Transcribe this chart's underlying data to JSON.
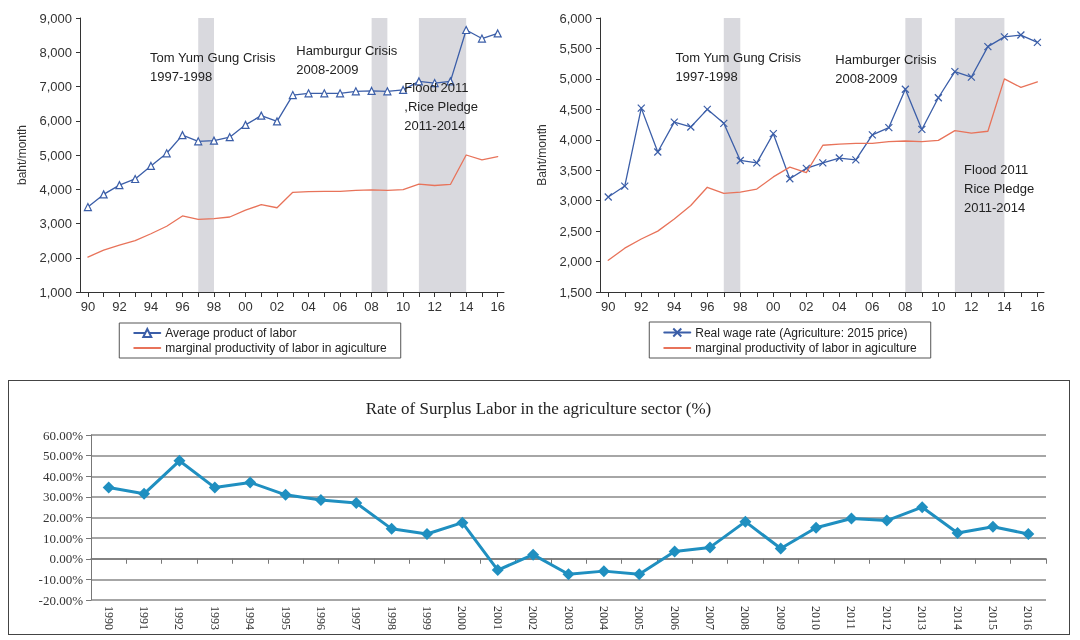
{
  "chart_data": [
    {
      "type": "line",
      "ylabel": "baht/month",
      "x": [
        1990,
        1991,
        1992,
        1993,
        1994,
        1995,
        1996,
        1997,
        1998,
        1999,
        2000,
        2001,
        2002,
        2003,
        2004,
        2005,
        2006,
        2007,
        2008,
        2009,
        2010,
        2011,
        2012,
        2013,
        2014,
        2015,
        2016
      ],
      "series": [
        {
          "name": "Average product of labor",
          "color": "#3b5ea8",
          "marker": "triangle",
          "values": [
            3480,
            3850,
            4120,
            4300,
            4680,
            5050,
            5580,
            5400,
            5420,
            5520,
            5880,
            6150,
            5980,
            6750,
            6800,
            6800,
            6800,
            6860,
            6870,
            6860,
            6900,
            7150,
            7100,
            7150,
            8650,
            8400,
            8550
          ]
        },
        {
          "name": "marginal productivity of labor in agiculture",
          "color": "#e8735a",
          "marker": "none",
          "values": [
            2020,
            2220,
            2370,
            2500,
            2700,
            2920,
            3220,
            3120,
            3140,
            3190,
            3390,
            3550,
            3460,
            3910,
            3930,
            3940,
            3940,
            3970,
            3980,
            3970,
            3990,
            4150,
            4110,
            4140,
            5000,
            4860,
            4950
          ]
        }
      ],
      "xlim": [
        1989.5,
        2016.4
      ],
      "xticks": [
        {
          "value": 1990,
          "label": "90"
        },
        {
          "value": 1991,
          "label": null
        },
        {
          "value": 1992,
          "label": "92"
        },
        {
          "value": 1993,
          "label": null
        },
        {
          "value": 1994,
          "label": "94"
        },
        {
          "value": 1995,
          "label": null
        },
        {
          "value": 1996,
          "label": "96"
        },
        {
          "value": 1997,
          "label": null
        },
        {
          "value": 1998,
          "label": "98"
        },
        {
          "value": 1999,
          "label": null
        },
        {
          "value": 2000,
          "label": "00"
        },
        {
          "value": 2001,
          "label": null
        },
        {
          "value": 2002,
          "label": "02"
        },
        {
          "value": 2003,
          "label": null
        },
        {
          "value": 2004,
          "label": "04"
        },
        {
          "value": 2005,
          "label": null
        },
        {
          "value": 2006,
          "label": "06"
        },
        {
          "value": 2007,
          "label": null
        },
        {
          "value": 2008,
          "label": "08"
        },
        {
          "value": 2009,
          "label": null
        },
        {
          "value": 2010,
          "label": "10"
        },
        {
          "value": 2011,
          "label": null
        },
        {
          "value": 2012,
          "label": "12"
        },
        {
          "value": 2013,
          "label": null
        },
        {
          "value": 2014,
          "label": "14"
        },
        {
          "value": 2015,
          "label": null
        },
        {
          "value": 2016,
          "label": "16"
        }
      ],
      "ylim": [
        1000,
        9000
      ],
      "yticks": [
        {
          "value": 1000,
          "label": "1,000"
        },
        {
          "value": 2000,
          "label": "2,000"
        },
        {
          "value": 3000,
          "label": "3,000"
        },
        {
          "value": 4000,
          "label": "4,000"
        },
        {
          "value": 5000,
          "label": "5,000"
        },
        {
          "value": 6000,
          "label": "6,000"
        },
        {
          "value": 7000,
          "label": "7,000"
        },
        {
          "value": 8000,
          "label": "8,000"
        },
        {
          "value": 9000,
          "label": "9,000"
        }
      ],
      "bands": [
        {
          "axis": "x",
          "from": 1997,
          "to": 1998,
          "color": "#d9d9de"
        },
        {
          "axis": "x",
          "from": 2008,
          "to": 2009,
          "color": "#d9d9de"
        },
        {
          "axis": "x",
          "from": 2011,
          "to": 2014,
          "color": "#d9d9de"
        }
      ],
      "annotations": [
        "Tom Yum Gung Crisis\n1997-1998",
        "Hamburgur Crisis\n2008-2009",
        "Flood 2011\n,Rice Pledge\n2011-2014"
      ],
      "grid": false,
      "legend": "bottom",
      "line_style": "solid"
    },
    {
      "type": "line",
      "ylabel": "Baht/month",
      "x": [
        1990,
        1991,
        1992,
        1993,
        1994,
        1995,
        1996,
        1997,
        1998,
        1999,
        2000,
        2001,
        2002,
        2003,
        2004,
        2005,
        2006,
        2007,
        2008,
        2009,
        2010,
        2011,
        2012,
        2013,
        2014,
        2015,
        2016
      ],
      "series": [
        {
          "name": "Real wage rate (Agriculture: 2015 price)",
          "color": "#3b5ea8",
          "marker": "cross",
          "values": [
            3060,
            3240,
            4520,
            3800,
            4290,
            4210,
            4500,
            4270,
            3660,
            3620,
            4100,
            3360,
            3530,
            3620,
            3700,
            3670,
            4080,
            4200,
            4830,
            4170,
            4690,
            5120,
            5030,
            5530,
            5690,
            5720,
            5600
          ]
        },
        {
          "name": "marginal productivity of labor in agiculture",
          "color": "#e8735a",
          "marker": "none",
          "values": [
            2020,
            2220,
            2370,
            2500,
            2700,
            2920,
            3220,
            3120,
            3140,
            3190,
            3390,
            3550,
            3460,
            3910,
            3930,
            3940,
            3940,
            3970,
            3980,
            3970,
            3990,
            4150,
            4110,
            4140,
            5000,
            4860,
            4950
          ]
        }
      ],
      "xlim": [
        1989.5,
        2016.4
      ],
      "xticks": [
        {
          "value": 1990,
          "label": "90"
        },
        {
          "value": 1991,
          "label": null
        },
        {
          "value": 1992,
          "label": "92"
        },
        {
          "value": 1993,
          "label": null
        },
        {
          "value": 1994,
          "label": "94"
        },
        {
          "value": 1995,
          "label": null
        },
        {
          "value": 1996,
          "label": "96"
        },
        {
          "value": 1997,
          "label": null
        },
        {
          "value": 1998,
          "label": "98"
        },
        {
          "value": 1999,
          "label": null
        },
        {
          "value": 2000,
          "label": "00"
        },
        {
          "value": 2001,
          "label": null
        },
        {
          "value": 2002,
          "label": "02"
        },
        {
          "value": 2003,
          "label": null
        },
        {
          "value": 2004,
          "label": "04"
        },
        {
          "value": 2005,
          "label": null
        },
        {
          "value": 2006,
          "label": "06"
        },
        {
          "value": 2007,
          "label": null
        },
        {
          "value": 2008,
          "label": "08"
        },
        {
          "value": 2009,
          "label": null
        },
        {
          "value": 2010,
          "label": "10"
        },
        {
          "value": 2011,
          "label": null
        },
        {
          "value": 2012,
          "label": "12"
        },
        {
          "value": 2013,
          "label": null
        },
        {
          "value": 2014,
          "label": "14"
        },
        {
          "value": 2015,
          "label": null
        },
        {
          "value": 2016,
          "label": "16"
        }
      ],
      "ylim": [
        1500,
        6000
      ],
      "yticks": [
        {
          "value": 1500,
          "label": "1,500"
        },
        {
          "value": 2000,
          "label": "2,000"
        },
        {
          "value": 2500,
          "label": "2,500"
        },
        {
          "value": 3000,
          "label": "3,000"
        },
        {
          "value": 3500,
          "label": "3,500"
        },
        {
          "value": 4000,
          "label": "4,000"
        },
        {
          "value": 4500,
          "label": "4,500"
        },
        {
          "value": 5000,
          "label": "5,000"
        },
        {
          "value": 5500,
          "label": "5,500"
        },
        {
          "value": 6000,
          "label": "6,000"
        }
      ],
      "bands": [
        {
          "axis": "x",
          "from": 1997,
          "to": 1998,
          "color": "#d9d9de"
        },
        {
          "axis": "x",
          "from": 2008,
          "to": 2009,
          "color": "#d9d9de"
        },
        {
          "axis": "x",
          "from": 2011,
          "to": 2014,
          "color": "#d9d9de"
        }
      ],
      "annotations": [
        "Tom Yum Gung Crisis\n1997-1998",
        "Hamburger Crisis\n2008-2009",
        "Flood 2011\nRice Pledge\n2011-2014"
      ],
      "grid": false,
      "legend": "bottom",
      "line_style": "solid"
    },
    {
      "type": "line",
      "title": "Rate of Surplus Labor in the agriculture sector (%)",
      "categories": [
        "1990",
        "1991",
        "1992",
        "1993",
        "1994",
        "1995",
        "1996",
        "1997",
        "1998",
        "1999",
        "2000",
        "2001",
        "2002",
        "2003",
        "2004",
        "2005",
        "2006",
        "2007",
        "2008",
        "2009",
        "2010",
        "2011",
        "2012",
        "2013",
        "2014",
        "2015",
        "2016"
      ],
      "series": [
        {
          "color": "#1f8fc0",
          "marker": "diamond",
          "values": [
            34.5,
            31.5,
            47.5,
            34.5,
            37,
            31,
            28.5,
            27,
            14.5,
            12,
            17.5,
            -5.5,
            2,
            -7.5,
            -6,
            -7.5,
            3.5,
            5.5,
            18,
            5,
            15,
            19.5,
            18.5,
            25,
            12.5,
            15.5,
            12
          ]
        }
      ],
      "ylim": [
        -20,
        60
      ],
      "yticks": [
        {
          "value": -20,
          "label": "-20.00%"
        },
        {
          "value": -10,
          "label": "-10.00%"
        },
        {
          "value": 0,
          "label": "0.00%"
        },
        {
          "value": 10,
          "label": "10.00%"
        },
        {
          "value": 20,
          "label": "20.00%"
        },
        {
          "value": 30,
          "label": "30.00%"
        },
        {
          "value": 40,
          "label": "40.00%"
        },
        {
          "value": 50,
          "label": "50.00%"
        },
        {
          "value": 60,
          "label": "60.00%"
        }
      ],
      "grid": "y",
      "legend": false,
      "line_style": "solid"
    }
  ]
}
